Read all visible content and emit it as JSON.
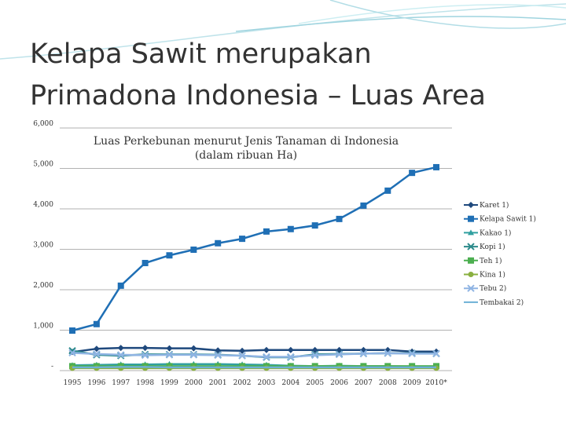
{
  "slide": {
    "title_lines": [
      "Kelapa Sawit merupakan",
      "Primadona Indonesia – Luas Area"
    ]
  },
  "chart_data": {
    "type": "line",
    "title_lines": [
      "Luas Perkebunan menurut Jenis Tanaman di Indonesia",
      "(dalam ribuan Ha)"
    ],
    "categories": [
      "1995",
      "1996",
      "1997",
      "1998",
      "1999",
      "2000",
      "2001",
      "2002",
      "2003",
      "2004",
      "2005",
      "2006",
      "2007",
      "2008",
      "2009",
      "2010*"
    ],
    "ylim": [
      0,
      6000
    ],
    "yticks": [
      {
        "value": 0,
        "label": "-"
      },
      {
        "value": 1000,
        "label": "1,000"
      },
      {
        "value": 2000,
        "label": "2,000"
      },
      {
        "value": 3000,
        "label": "3,000"
      },
      {
        "value": 4000,
        "label": "4,000"
      },
      {
        "value": 5000,
        "label": "5,000"
      },
      {
        "value": 6000,
        "label": "6,000"
      }
    ],
    "grid": true,
    "legend": "right",
    "series": [
      {
        "name": "Karet 1)",
        "color": "#1f497d",
        "marker": "diamond",
        "values": [
          460,
          540,
          560,
          560,
          550,
          550,
          500,
          490,
          510,
          510,
          510,
          510,
          510,
          510,
          470,
          470
        ]
      },
      {
        "name": "Kelapa Sawit 1)",
        "color": "#1f6fb5",
        "marker": "square",
        "values": [
          990,
          1150,
          2100,
          2660,
          2850,
          2990,
          3150,
          3260,
          3440,
          3500,
          3590,
          3750,
          4080,
          4450,
          4890,
          5030
        ]
      },
      {
        "name": "Kakao 1)",
        "color": "#31a0a0",
        "marker": "triangle",
        "values": [
          130,
          140,
          150,
          150,
          160,
          160,
          160,
          150,
          140,
          120,
          110,
          120,
          110,
          110,
          100,
          100
        ]
      },
      {
        "name": "Kopi 1)",
        "color": "#2a8a8a",
        "marker": "x",
        "values": [
          490,
          390,
          370,
          400,
          400,
          400,
          390,
          370,
          330,
          330,
          400,
          410,
          420,
          430,
          430,
          420
        ]
      },
      {
        "name": "Teh 1)",
        "color": "#4caf50",
        "marker": "square",
        "values": [
          110,
          110,
          110,
          110,
          110,
          110,
          110,
          110,
          110,
          110,
          110,
          110,
          110,
          110,
          110,
          110
        ]
      },
      {
        "name": "Kina 1)",
        "color": "#8ab040",
        "marker": "circle",
        "values": [
          60,
          60,
          60,
          60,
          60,
          60,
          60,
          60,
          60,
          60,
          60,
          60,
          60,
          60,
          60,
          60
        ]
      },
      {
        "name": "Tebu 2)",
        "color": "#8fb4e3",
        "marker": "x",
        "values": [
          440,
          410,
          390,
          380,
          390,
          390,
          380,
          370,
          340,
          340,
          380,
          400,
          420,
          430,
          420,
          420
        ]
      },
      {
        "name": "Tembakai 2)",
        "color": "#6cb0d6",
        "marker": "none",
        "values": [
          80,
          80,
          90,
          90,
          80,
          80,
          80,
          80,
          80,
          80,
          80,
          80,
          80,
          80,
          80,
          80
        ]
      }
    ]
  }
}
